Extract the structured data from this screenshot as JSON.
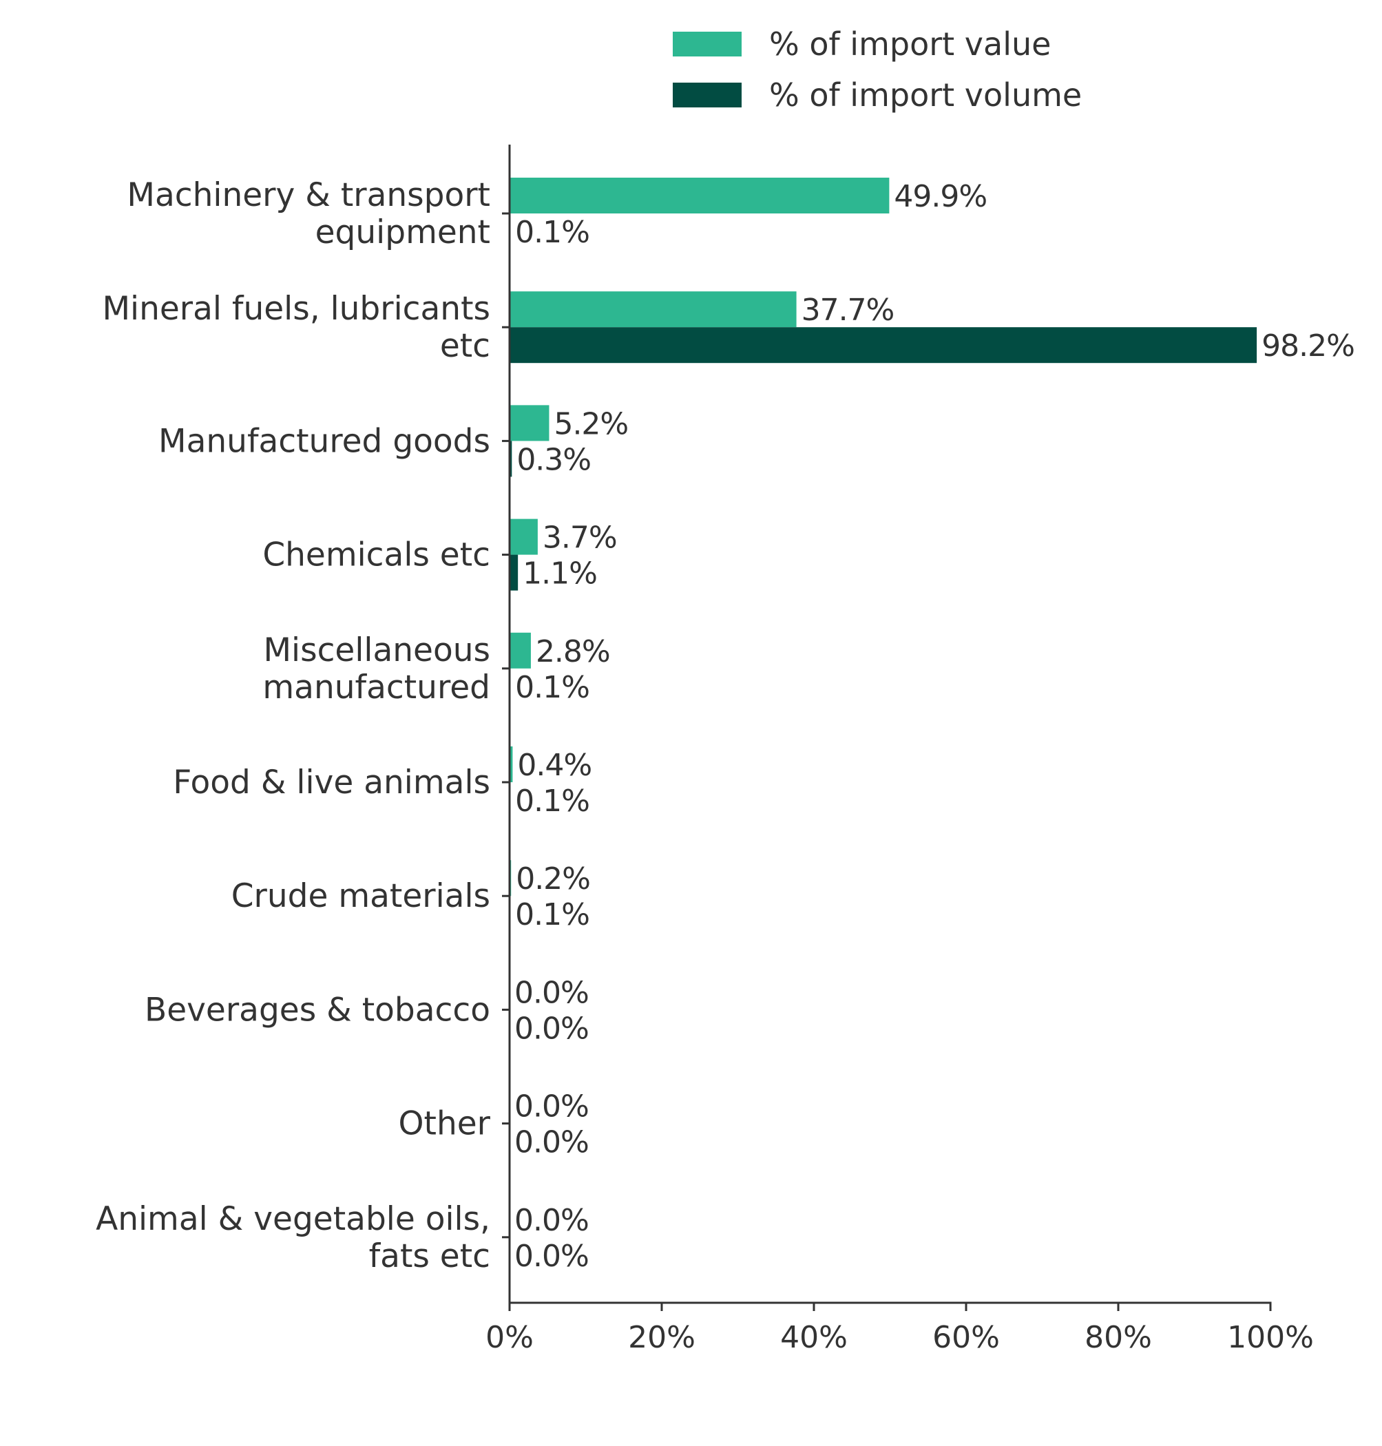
{
  "chart_data": {
    "type": "bar",
    "orientation": "horizontal",
    "categories": [
      [
        "Machinery & transport",
        "equipment"
      ],
      [
        "Mineral fuels, lubricants",
        "etc"
      ],
      [
        "Manufactured goods"
      ],
      [
        "Chemicals etc"
      ],
      [
        "Miscellaneous",
        "manufactured"
      ],
      [
        "Food & live animals"
      ],
      [
        "Crude materials"
      ],
      [
        "Beverages & tobacco"
      ],
      [
        "Other"
      ],
      [
        "Animal & vegetable oils,",
        "fats etc"
      ]
    ],
    "series": [
      {
        "name": "% of import value",
        "color": "#2db791",
        "values": [
          49.9,
          37.7,
          5.2,
          3.7,
          2.8,
          0.4,
          0.2,
          0.0,
          0.0,
          0.0
        ],
        "labels": [
          "49.9%",
          "37.7%",
          "5.2%",
          "3.7%",
          "2.8%",
          "0.4%",
          "0.2%",
          "0.0%",
          "0.0%",
          "0.0%"
        ]
      },
      {
        "name": "% of import volume",
        "color": "#024c42",
        "values": [
          0.1,
          98.2,
          0.3,
          1.1,
          0.1,
          0.1,
          0.1,
          0.0,
          0.0,
          0.0
        ],
        "labels": [
          "0.1%",
          "98.2%",
          "0.3%",
          "1.1%",
          "0.1%",
          "0.1%",
          "0.1%",
          "0.0%",
          "0.0%",
          "0.0%"
        ]
      }
    ],
    "xlim": [
      0,
      100
    ],
    "xticks": [
      0,
      20,
      40,
      60,
      80,
      100
    ],
    "xtick_labels": [
      "0%",
      "20%",
      "40%",
      "60%",
      "80%",
      "100%"
    ],
    "legend_position": "top",
    "grid": false
  }
}
